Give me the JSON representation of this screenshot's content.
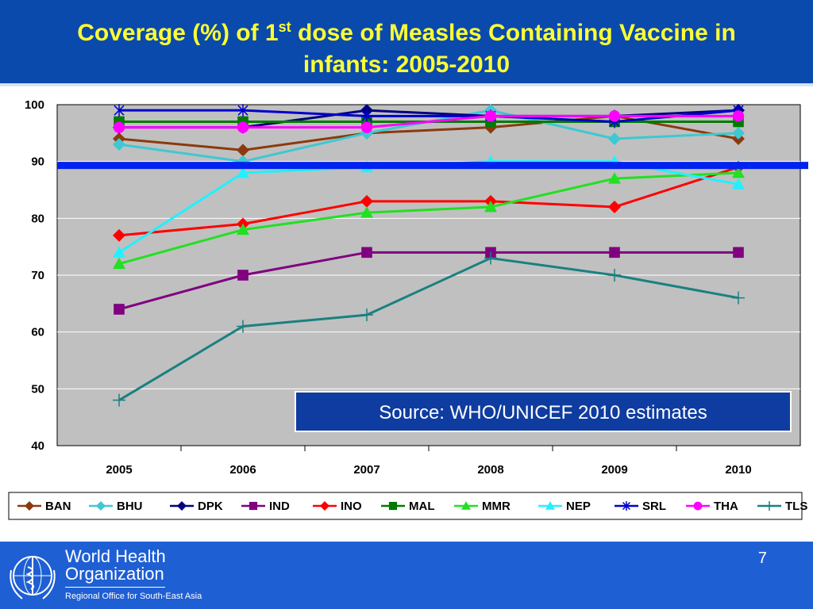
{
  "slide": {
    "title_part1": "Coverage (%) of 1",
    "title_sup": "st",
    "title_part2": " dose of Measles Containing Vaccine in",
    "title_line2": "infants: 2005-2010",
    "page_number": "7"
  },
  "footer": {
    "org_line1": "World Health",
    "org_line2": "Organization",
    "org_region": "Regional Office for South-East Asia"
  },
  "chart_data": {
    "type": "line",
    "title": "",
    "xlabel": "",
    "ylabel": "",
    "categories": [
      "2005",
      "2006",
      "2007",
      "2008",
      "2009",
      "2010"
    ],
    "ylim": [
      40,
      100
    ],
    "yticks": [
      40,
      50,
      60,
      70,
      80,
      90,
      100
    ],
    "grid": true,
    "legend_position": "bottom",
    "reference_line": {
      "value": 89.3,
      "color": "#0022ee"
    },
    "annotation": "Source: WHO/UNICEF 2010 estimates",
    "series": [
      {
        "name": "BAN",
        "color": "#8b3a0e",
        "marker": "diamond",
        "values": [
          94,
          92,
          95,
          96,
          98,
          94
        ]
      },
      {
        "name": "BHU",
        "color": "#3ec8d2",
        "marker": "diamond",
        "values": [
          93,
          90,
          95,
          99,
          94,
          95
        ]
      },
      {
        "name": "DPK",
        "color": "#000080",
        "marker": "diamond",
        "values": [
          96,
          96,
          99,
          98,
          98,
          99
        ]
      },
      {
        "name": "IND",
        "color": "#800080",
        "marker": "square",
        "values": [
          64,
          70,
          74,
          74,
          74,
          74
        ]
      },
      {
        "name": "INO",
        "color": "#ff0000",
        "marker": "diamond",
        "values": [
          77,
          79,
          83,
          83,
          82,
          89
        ]
      },
      {
        "name": "MAL",
        "color": "#007a00",
        "marker": "square",
        "values": [
          97,
          97,
          97,
          97,
          97,
          97
        ]
      },
      {
        "name": "MMR",
        "color": "#22e022",
        "marker": "triangle",
        "values": [
          72,
          78,
          81,
          82,
          87,
          88
        ]
      },
      {
        "name": "NEP",
        "color": "#22f0ff",
        "marker": "triangle",
        "values": [
          74,
          88,
          89,
          90,
          90,
          86
        ]
      },
      {
        "name": "SRL",
        "color": "#0000cc",
        "marker": "star",
        "values": [
          99,
          99,
          98,
          98,
          97,
          99
        ]
      },
      {
        "name": "THA",
        "color": "#ff00ff",
        "marker": "circle",
        "values": [
          96,
          96,
          96,
          98,
          98,
          98
        ]
      },
      {
        "name": "TLS",
        "color": "#1a8080",
        "marker": "plus",
        "values": [
          48,
          61,
          63,
          73,
          70,
          66
        ]
      }
    ]
  }
}
